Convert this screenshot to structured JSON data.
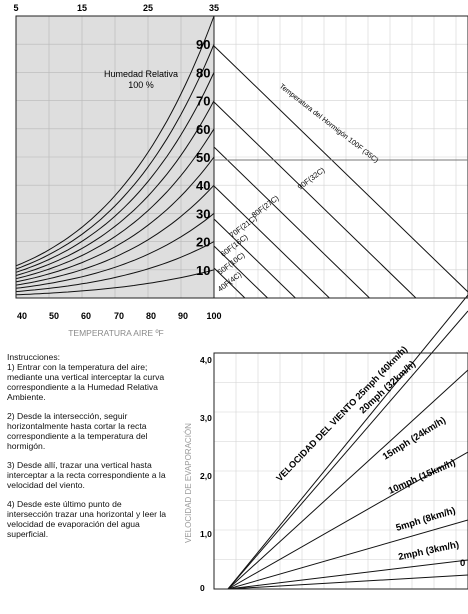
{
  "chart_data": {
    "type": "nomograph",
    "title": "",
    "top_chart": {
      "top_axis_ticks": [
        "5",
        "15",
        "25",
        "35"
      ],
      "bottom_axis_ticks": [
        "40",
        "50",
        "60",
        "70",
        "80",
        "90",
        "100"
      ],
      "xlabel": "TEMPERATURA AIRE ºF",
      "humidity_title": "Humedad Relativa",
      "humidity_100": "100 %",
      "humidity_curves": [
        {
          "label": "90",
          "rh": 90
        },
        {
          "label": "80",
          "rh": 80
        },
        {
          "label": "70",
          "rh": 70
        },
        {
          "label": "60",
          "rh": 60
        },
        {
          "label": "50",
          "rh": 50
        },
        {
          "label": "40",
          "rh": 40
        },
        {
          "label": "30",
          "rh": 30
        },
        {
          "label": "20",
          "rh": 20
        },
        {
          "label": "10",
          "rh": 10
        }
      ],
      "concrete_lines_title": "Temperatura del Hormigón 100F (35C)",
      "concrete_lines": [
        "90F(32C)",
        "80F(27C)",
        "70F(21C)",
        "60F(16C)",
        "50F(10C)",
        "40F(4C)"
      ]
    },
    "bottom_chart": {
      "ylabel": "VELOCIDAD DE EVAPORACIÓN",
      "y_ticks": [
        "0",
        "1,0",
        "2,0",
        "3,0",
        "4,0"
      ],
      "wind_title": "VELOCIDAD DEL VIENTO 25mph (40km/h)",
      "wind_lines": [
        {
          "label": "20mph (32km/h)",
          "mph": 20
        },
        {
          "label": "15mph (24km/h)",
          "mph": 15
        },
        {
          "label": "10mph (15km/h)",
          "mph": 10
        },
        {
          "label": "5mph (8km/h)",
          "mph": 5
        },
        {
          "label": "2mph (3km/h)",
          "mph": 2
        },
        {
          "label": "0",
          "mph": 0
        }
      ]
    }
  },
  "instructions": {
    "heading": "Instrucciones:",
    "step1": "1) Entrar con la temperatura del aire; mediante una vertical interceptar la curva correspondiente a la Humedad Relativa Ambiente.",
    "step2": "2) Desde la intersección, seguir horizontalmente hasta cortar la recta correspondiente a la temperatura del hormigón.",
    "step3": "3) Desde allí, trazar una vertical hasta interceptar a la recta correspondiente a la velocidad del viento.",
    "step4": "4) Desde este último punto de intersección trazar una horizontal y leer la velocidad de evaporación del agua superficial."
  }
}
